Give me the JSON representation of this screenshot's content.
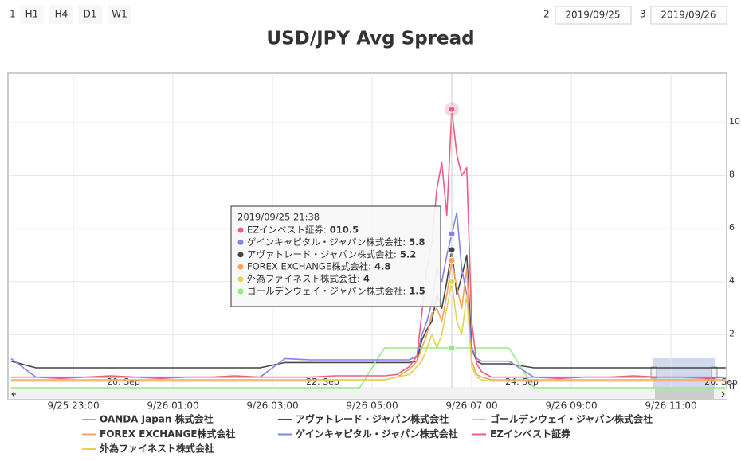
{
  "toolbar": {
    "zoom_label": "1",
    "buttons": [
      "H1",
      "H4",
      "D1",
      "W1"
    ],
    "from_label": "2",
    "from": "2019/09/25",
    "to_label": "3",
    "to": "2019/09/26"
  },
  "chart_data": {
    "type": "line",
    "title": "USD/JPY Avg Spread",
    "x": [
      21.75,
      22.25,
      22.75,
      23.25,
      23.75,
      24.25,
      24.75,
      25.25,
      25.75,
      26.25,
      26.75,
      27.25,
      27.75,
      28.25,
      28.75,
      29.25,
      29.5,
      29.75,
      29.9,
      30.0,
      30.1,
      30.2,
      30.3,
      30.4,
      30.5,
      30.6,
      30.7,
      30.8,
      30.9,
      31.0,
      31.1,
      31.2,
      31.4,
      31.75,
      32.25,
      32.75,
      33.25,
      33.75,
      34.25,
      34.75,
      35.25,
      35.75,
      36.1
    ],
    "xlim": [
      21.72,
      36.12
    ],
    "xticks": [
      {
        "value": 23,
        "label": "9/25 23:00"
      },
      {
        "value": 25,
        "label": "9/26 01:00"
      },
      {
        "value": 27,
        "label": "9/26 03:00"
      },
      {
        "value": 29,
        "label": "9/26 05:00"
      },
      {
        "value": 31,
        "label": "9/26 07:00"
      },
      {
        "value": 33,
        "label": "9/26 09:00"
      },
      {
        "value": 35,
        "label": "9/26 11:00"
      }
    ],
    "ylim": [
      0,
      11.8
    ],
    "yticks": [
      0,
      2,
      4,
      6,
      8,
      10
    ],
    "grid": true,
    "series": [
      {
        "name": "OANDA Japan 株式会社",
        "color": "#7cb5ec",
        "values": [
          null,
          null,
          null,
          null,
          null,
          null,
          null,
          null,
          null,
          null,
          null,
          null,
          null,
          null,
          null,
          null,
          null,
          null,
          null,
          null,
          null,
          null,
          null,
          null,
          null,
          null,
          null,
          null,
          null,
          null,
          null,
          null,
          null,
          null,
          null,
          null,
          null,
          null,
          null,
          null,
          null,
          null,
          null
        ]
      },
      {
        "name": "アヴァトレード・ジャパン株式会社",
        "color": "#434348",
        "values": [
          1.0,
          0.75,
          0.75,
          0.75,
          0.75,
          0.75,
          0.75,
          0.75,
          0.75,
          0.75,
          0.75,
          0.95,
          0.95,
          0.95,
          0.95,
          0.95,
          0.95,
          0.95,
          1.0,
          1.8,
          2.2,
          2.5,
          3.5,
          3.0,
          4.0,
          5.2,
          3.5,
          4.2,
          5.0,
          1.5,
          1.0,
          0.9,
          0.9,
          0.9,
          0.75,
          0.75,
          0.75,
          0.75,
          0.75,
          0.75,
          0.75,
          0.75,
          0.75
        ]
      },
      {
        "name": "ゴールデンウェイ・ジャパン株式会社",
        "color": "#90ed7d",
        "values": [
          0,
          0,
          0,
          0,
          0,
          0,
          0,
          0,
          0,
          0,
          0,
          0,
          0,
          0,
          0,
          1.5,
          1.5,
          1.5,
          1.5,
          1.5,
          1.5,
          1.5,
          1.5,
          1.5,
          1.5,
          1.5,
          1.5,
          1.5,
          1.5,
          1.5,
          1.5,
          1.5,
          1.5,
          1.5,
          0,
          0,
          0,
          0,
          0,
          0,
          0,
          0,
          0
        ]
      },
      {
        "name": "FOREX EXCHANGE株式会社",
        "color": "#f7a35c",
        "values": [
          0.3,
          0.3,
          0.3,
          0.3,
          0.3,
          0.3,
          0.3,
          0.3,
          0.3,
          0.3,
          0.3,
          0.3,
          0.3,
          0.3,
          0.3,
          0.3,
          0.4,
          0.7,
          1.0,
          1.5,
          2.0,
          2.8,
          3.0,
          2.5,
          3.5,
          4.8,
          3.8,
          3.0,
          4.5,
          1.0,
          0.5,
          0.4,
          0.3,
          0.3,
          0.3,
          0.3,
          0.3,
          0.3,
          0.3,
          0.3,
          0.3,
          0.3,
          0.3
        ]
      },
      {
        "name": "ゲインキャピタル・ジャパン株式会社",
        "color": "#8085e9",
        "values": [
          1.1,
          0.4,
          0.4,
          0.4,
          0.4,
          0.4,
          0.4,
          0.4,
          0.4,
          0.4,
          0.4,
          1.1,
          1.05,
          1.05,
          1.05,
          1.05,
          1.05,
          1.05,
          1.2,
          2.0,
          2.5,
          3.2,
          4.5,
          4.0,
          5.0,
          5.8,
          6.6,
          4.5,
          3.5,
          1.5,
          1.1,
          1.0,
          1.0,
          1.0,
          0.4,
          0.4,
          0.4,
          0.4,
          0.4,
          0.4,
          0.4,
          0.4,
          0.4
        ]
      },
      {
        "name": "EZインベスト証券",
        "color": "#f15c80",
        "values": [
          0.4,
          0.4,
          0.35,
          0.4,
          0.45,
          0.4,
          0.35,
          0.4,
          0.4,
          0.45,
          0.4,
          0.4,
          0.4,
          0.45,
          0.45,
          0.45,
          0.5,
          0.8,
          1.2,
          2.8,
          4.5,
          5.5,
          7.5,
          8.5,
          6.5,
          10.5,
          8.8,
          8.0,
          8.3,
          2.5,
          0.9,
          0.6,
          0.4,
          0.4,
          0.4,
          0.35,
          0.4,
          0.4,
          0.45,
          0.4,
          0.4,
          0.35,
          0.4
        ]
      },
      {
        "name": "外為ファイネスト株式会社",
        "color": "#e4d354",
        "values": [
          0.25,
          0.25,
          0.25,
          0.25,
          0.25,
          0.25,
          0.25,
          0.25,
          0.25,
          0.25,
          0.25,
          0.25,
          0.25,
          0.3,
          0.3,
          0.3,
          0.4,
          0.5,
          0.8,
          1.0,
          1.5,
          2.0,
          1.5,
          2.0,
          3.0,
          4.0,
          2.5,
          2.0,
          3.5,
          0.8,
          0.4,
          0.3,
          0.25,
          0.25,
          0.25,
          0.25,
          0.25,
          0.25,
          0.25,
          0.25,
          0.25,
          0.25,
          0.25
        ]
      }
    ],
    "navigator": {
      "labels": [
        "20. Sep",
        "22. Sep",
        "24. Sep",
        "26. Sep"
      ]
    },
    "tooltip": {
      "title": "2019/09/25 21:38",
      "items": [
        {
          "text": "EZインベスト証券:",
          "value": 10.5,
          "value_label": "010.5",
          "color": "#f15c80"
        },
        {
          "text": "ゲインキャピタル・ジャパン株式会社:",
          "value": 5.8,
          "color": "#8085e9"
        },
        {
          "text": "アヴァトレード・ジャパン株式会社:",
          "value": 5.2,
          "color": "#434348"
        },
        {
          "text": "FOREX EXCHANGE株式会社:",
          "value": 4.8,
          "color": "#f7a35c"
        },
        {
          "text": "外為ファイネスト株式会社:",
          "value": 4.0,
          "color": "#e4d354"
        },
        {
          "text": "ゴールデンウェイ・ジャパン株式会社:",
          "value": 1.5,
          "color": "#90ed7d"
        }
      ]
    }
  }
}
